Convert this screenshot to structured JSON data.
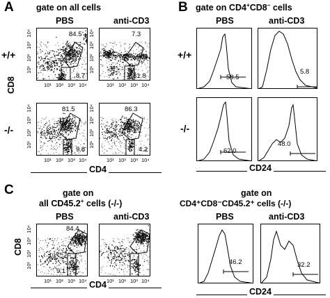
{
  "section_A": {
    "label": "A",
    "heading": "gate on all cells",
    "col_labels": [
      "PBS",
      "anti-CD3"
    ],
    "row_labels": [
      "+/+",
      "-/-"
    ],
    "x_axis_label": "CD4",
    "y_axis_label": "CD8",
    "tick_labels": [
      "10¹",
      "10²",
      "10³",
      "10⁴"
    ],
    "plots": [
      {
        "upper": "84.5",
        "lower": "8.7"
      },
      {
        "upper": "7.3",
        "lower": "31.8"
      },
      {
        "upper": "81.5",
        "lower": "9.8"
      },
      {
        "upper": "86.3",
        "lower": "4.2"
      }
    ]
  },
  "section_B": {
    "label": "B",
    "heading_pre": "gate on CD4",
    "heading_sup1": "+",
    "heading_mid": "CD8",
    "heading_sup2": "−",
    "heading_post": " cells",
    "col_labels": [
      "PBS",
      "anti-CD3"
    ],
    "row_labels": [
      "+/+",
      "-/-"
    ],
    "x_axis_label": "CD24",
    "values": [
      "58.5",
      "5.8",
      "62.0",
      "48.0"
    ]
  },
  "section_C": {
    "label": "C",
    "heading_line1": "gate on",
    "heading_line2_pre": "all CD45.2",
    "heading_line2_sup": "+",
    "heading_line2_post": " cells (-/-)",
    "col_labels": [
      "PBS",
      "anti-CD3"
    ],
    "x_axis_label": "CD4",
    "y_axis_label": "CD8",
    "tick_labels": [
      "10¹",
      "10²",
      "10³",
      "10⁴"
    ],
    "plots": [
      {
        "upper": "84.4",
        "lower": "9.1"
      }
    ]
  },
  "section_C_right": {
    "heading_line1": "gate on",
    "heading_line2": "CD4⁺CD8⁻CD45.2⁺ cells (-/-)",
    "col_labels": [
      "PBS",
      "anti-CD3"
    ],
    "x_axis_label": "CD24",
    "values": [
      "46.2",
      "32.2"
    ]
  }
}
